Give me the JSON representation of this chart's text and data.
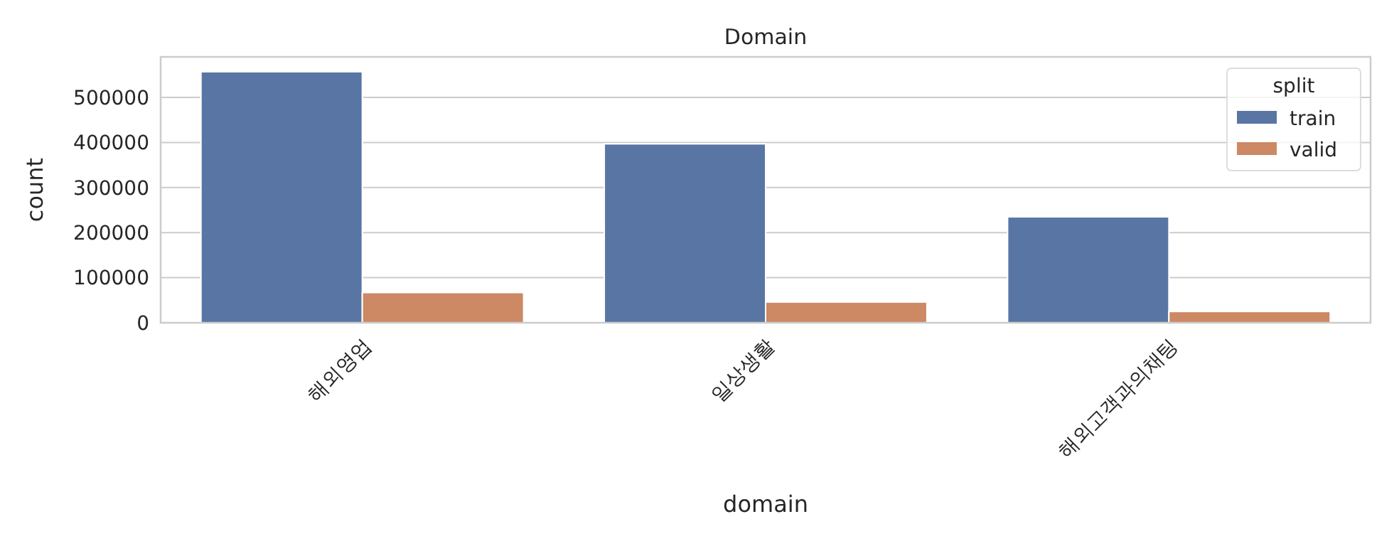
{
  "chart_data": {
    "type": "bar",
    "title": "Domain",
    "xlabel": "domain",
    "ylabel": "count",
    "legend_title": "split",
    "categories": [
      "해외영업",
      "일상생활",
      "해외고객과의채팅"
    ],
    "series": [
      {
        "name": "train",
        "color": "#5975a4",
        "values": [
          557000,
          397000,
          235000
        ]
      },
      {
        "name": "valid",
        "color": "#cc8963",
        "values": [
          67000,
          46000,
          25000
        ]
      }
    ],
    "ylim": [
      0,
      590000
    ],
    "yticks": [
      0,
      100000,
      200000,
      300000,
      400000,
      500000
    ],
    "grid": "y",
    "legend": "top right"
  }
}
